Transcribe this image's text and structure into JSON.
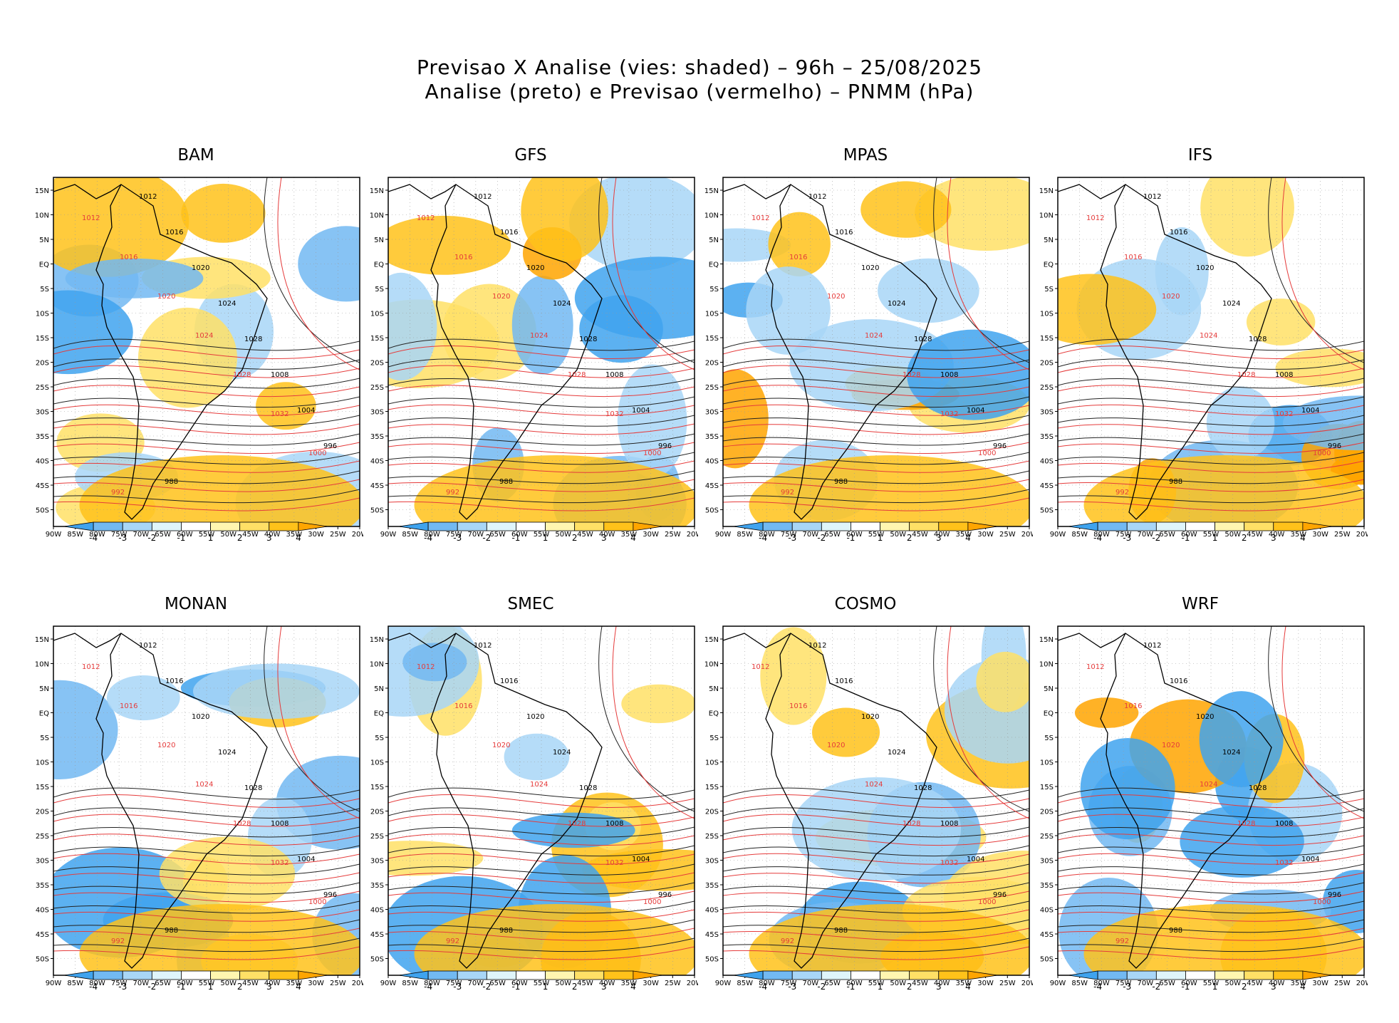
{
  "title": {
    "line1": "Previsao X Analise (vies: shaded) – 96h – 25/08/2025",
    "line2": "Analise (preto) e Previsao (vermelho) – PNMM (hPa)"
  },
  "chart_data": {
    "type": "heatmap",
    "panels": [
      {
        "name": "BAM"
      },
      {
        "name": "GFS"
      },
      {
        "name": "MPAS"
      },
      {
        "name": "IFS"
      },
      {
        "name": "MONAN"
      },
      {
        "name": "SMEC"
      },
      {
        "name": "COSMO"
      },
      {
        "name": "WRF"
      }
    ],
    "x_ticks": [
      "90W",
      "85W",
      "80W",
      "75W",
      "70W",
      "65W",
      "60W",
      "55W",
      "50W",
      "45W",
      "40W",
      "35W",
      "30W",
      "25W",
      "20W"
    ],
    "y_ticks": [
      "15N",
      "10N",
      "5N",
      "EQ",
      "5S",
      "10S",
      "15S",
      "20S",
      "25S",
      "30S",
      "35S",
      "40S",
      "45S",
      "50S"
    ],
    "colorbar": {
      "labels": [
        "-4",
        "-3",
        "-2",
        "-1",
        "1",
        "2",
        "3",
        "4"
      ],
      "colors": [
        "#3fa3ee",
        "#72b9f2",
        "#a8d6f7",
        "#dff5fb",
        "#ffffff",
        "#fff6b0",
        "#ffe066",
        "#ffc21a",
        "#ffa500"
      ]
    },
    "contour_labels": {
      "analysis": [
        "1012",
        "1016",
        "1020",
        "1024",
        "1028",
        "1008",
        "1004",
        "996",
        "988"
      ],
      "forecast": [
        "1012",
        "1016",
        "1020",
        "1024",
        "1028",
        "1032",
        "1000",
        "992"
      ]
    },
    "xrange": [
      "90W",
      "20W"
    ],
    "yrange": [
      "52S",
      "17N"
    ]
  }
}
